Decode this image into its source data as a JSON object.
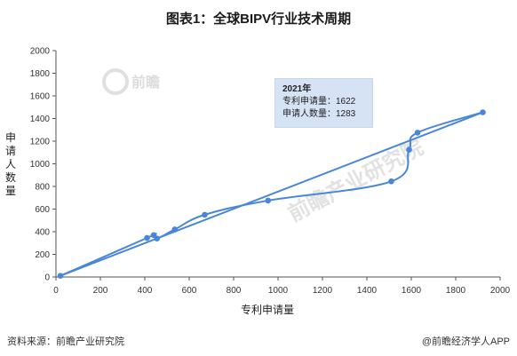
{
  "chart_data": {
    "type": "line",
    "title": "图表1：全球BIPV行业技术周期",
    "xlabel": "专利申请量",
    "ylabel": "申请人数量",
    "xlim": [
      0,
      2000
    ],
    "ylim": [
      0,
      2000
    ],
    "xticks": [
      0,
      200,
      400,
      600,
      800,
      1000,
      1200,
      1400,
      1600,
      1800,
      2000
    ],
    "yticks": [
      0,
      200,
      400,
      600,
      800,
      1000,
      1200,
      1400,
      1600,
      1800,
      2000
    ],
    "grid": false,
    "legend": "none",
    "color": "#4a86d8",
    "series": [
      {
        "points": [
          {
            "x": 20,
            "y": 10
          },
          {
            "x": 410,
            "y": 345
          },
          {
            "x": 440,
            "y": 370
          },
          {
            "x": 455,
            "y": 340
          },
          {
            "x": 535,
            "y": 420
          },
          {
            "x": 670,
            "y": 550
          },
          {
            "x": 955,
            "y": 675
          },
          {
            "x": 1510,
            "y": 845
          },
          {
            "x": 1590,
            "y": 1125
          },
          {
            "x": 1628,
            "y": 1275
          },
          {
            "x": 1922,
            "y": 1455
          }
        ]
      }
    ],
    "trend_line": {
      "x": [
        20,
        1922
      ],
      "y": [
        10,
        1455
      ]
    },
    "tooltip": {
      "year": "2021年",
      "line1": "专利申请量：1622",
      "line2": "申请人数量：1283"
    }
  },
  "source_text": "资料来源：前瞻产业研究院",
  "brand_text": "@前瞻经济学人APP",
  "watermarks": {
    "logo_text": "前瞻",
    "center_text": "前瞻产业研究院"
  }
}
